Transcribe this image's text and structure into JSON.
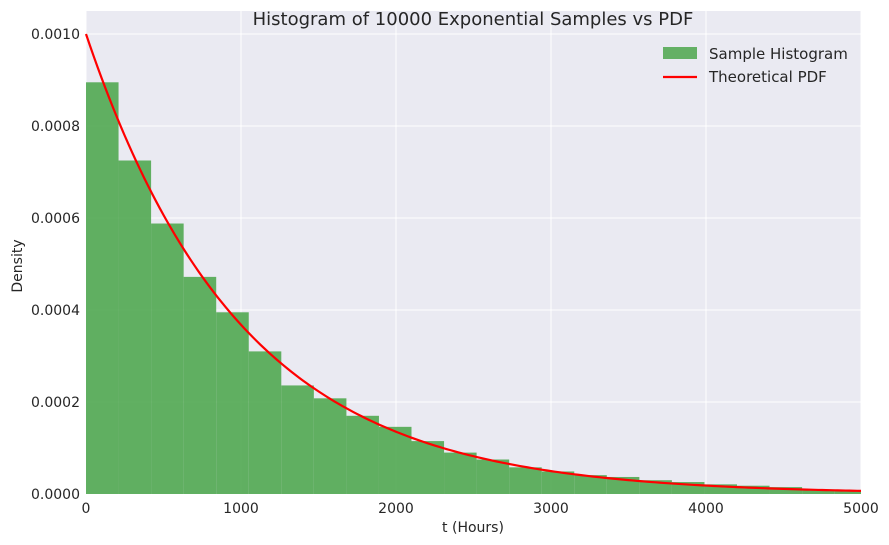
{
  "chart_data": {
    "type": "bar",
    "title": "Histogram of 10000 Exponential Samples vs PDF",
    "xlabel": "t (Hours)",
    "ylabel": "Density",
    "xlim": [
      0,
      5000
    ],
    "ylim": [
      0,
      0.00105
    ],
    "x_ticks": [
      "0",
      "1000",
      "2000",
      "3000",
      "4000",
      "5000"
    ],
    "y_ticks": [
      "0.0000",
      "0.0002",
      "0.0004",
      "0.0006",
      "0.0008",
      "0.0010"
    ],
    "grid": true,
    "legend_placement": "top-right",
    "bin_width": 210,
    "bin_starts": [
      0,
      210,
      420,
      630,
      840,
      1050,
      1260,
      1470,
      1680,
      1890,
      2100,
      2310,
      2520,
      2730,
      2940,
      3150,
      3360,
      3570,
      3780,
      3990,
      4200,
      4410,
      4620,
      4830
    ],
    "series": [
      {
        "name": "Sample Histogram",
        "kind": "histogram",
        "color": "#4ca64c",
        "values": [
          0.000895,
          0.000725,
          0.000588,
          0.000472,
          0.000395,
          0.00031,
          0.000236,
          0.000208,
          0.00017,
          0.000146,
          0.000115,
          9e-05,
          7.5e-05,
          5.8e-05,
          4.9e-05,
          4.1e-05,
          3.7e-05,
          3e-05,
          2.6e-05,
          2.1e-05,
          1.8e-05,
          1.5e-05,
          1e-05,
          7e-06
        ]
      },
      {
        "name": "Theoretical PDF",
        "kind": "line",
        "color": "#ff0000",
        "function": "0.001*exp(-0.001*t)",
        "x": [
          0,
          250,
          500,
          750,
          1000,
          1250,
          1500,
          1750,
          2000,
          2250,
          2500,
          2750,
          3000,
          3250,
          3500,
          3750,
          4000,
          4250,
          4500,
          4750,
          5000
        ],
        "values": [
          0.001,
          0.000779,
          0.000607,
          0.000472,
          0.000368,
          0.000287,
          0.000223,
          0.000174,
          0.000135,
          0.000105,
          8.2e-05,
          6.4e-05,
          5e-05,
          3.9e-05,
          3e-05,
          2.4e-05,
          1.8e-05,
          1.4e-05,
          1.1e-05,
          8.7e-06,
          6.7e-06
        ]
      }
    ],
    "colors": {
      "background": "#eaeaf2",
      "grid": "#ffffff"
    }
  }
}
